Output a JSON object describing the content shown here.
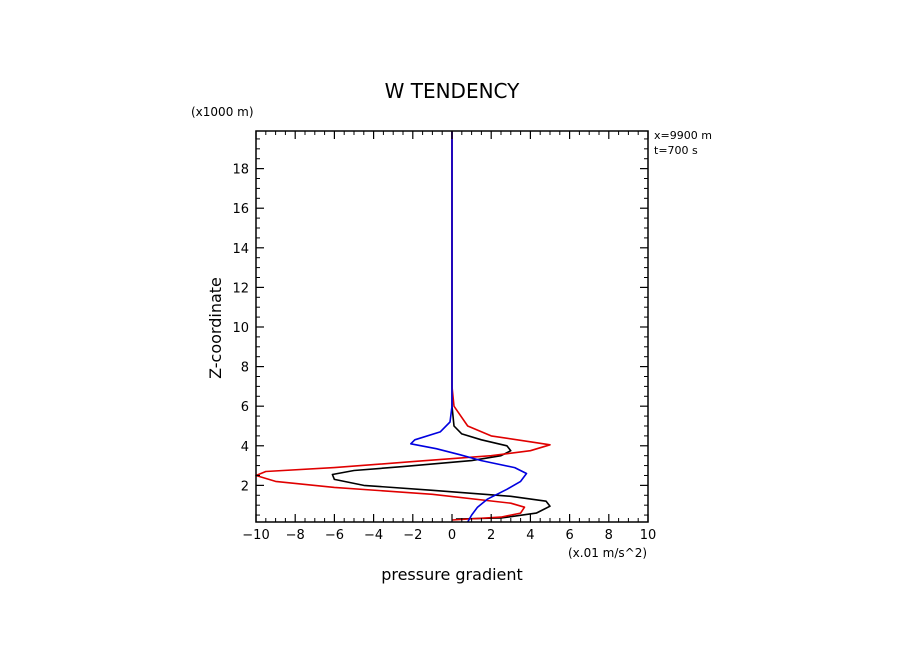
{
  "chart_data": {
    "type": "line",
    "title": "W TENDENCY",
    "xlabel": "pressure gradient",
    "ylabel": "Z-coordinate",
    "x_unit": "(x.01 m/s^2)",
    "y_unit": "(x1000 m)",
    "annotations": [
      "x=9900  m",
      "t=700  s"
    ],
    "xlim": [
      -10,
      10
    ],
    "ylim": [
      0.15,
      19.9
    ],
    "x_ticks": [
      -10,
      -8,
      -6,
      -4,
      -2,
      0,
      2,
      4,
      6,
      8,
      10
    ],
    "y_ticks": [
      2,
      4,
      6,
      8,
      10,
      12,
      14,
      16,
      18
    ],
    "grid": false,
    "series": [
      {
        "color": "#000000",
        "points": [
          [
            0.2,
            0.3
          ],
          [
            2.5,
            0.35
          ],
          [
            4.3,
            0.6
          ],
          [
            5.0,
            0.95
          ],
          [
            4.8,
            1.2
          ],
          [
            3.0,
            1.45
          ],
          [
            -1.0,
            1.75
          ],
          [
            -4.5,
            2.0
          ],
          [
            -6.0,
            2.3
          ],
          [
            -6.1,
            2.55
          ],
          [
            -5.0,
            2.75
          ],
          [
            -2.5,
            2.95
          ],
          [
            1.0,
            3.25
          ],
          [
            2.5,
            3.5
          ],
          [
            3.0,
            3.75
          ],
          [
            2.8,
            4.0
          ],
          [
            1.5,
            4.3
          ],
          [
            0.5,
            4.6
          ],
          [
            0.1,
            5.0
          ],
          [
            0.0,
            6.0
          ],
          [
            0.0,
            19.9
          ]
        ]
      },
      {
        "color": "#e00000",
        "points": [
          [
            0.0,
            0.25
          ],
          [
            2.5,
            0.4
          ],
          [
            3.5,
            0.6
          ],
          [
            3.7,
            0.9
          ],
          [
            3.0,
            1.1
          ],
          [
            -1.0,
            1.55
          ],
          [
            -6.0,
            1.9
          ],
          [
            -9.0,
            2.2
          ],
          [
            -10.0,
            2.5
          ],
          [
            -9.5,
            2.7
          ],
          [
            -6.0,
            2.9
          ],
          [
            -2.0,
            3.2
          ],
          [
            2.0,
            3.5
          ],
          [
            4.0,
            3.75
          ],
          [
            5.0,
            4.05
          ],
          [
            4.0,
            4.2
          ],
          [
            2.0,
            4.5
          ],
          [
            0.8,
            5.0
          ],
          [
            0.1,
            6.0
          ],
          [
            0.0,
            7.0
          ],
          [
            0.0,
            19.9
          ]
        ]
      },
      {
        "color": "#0000e0",
        "points": [
          [
            0.8,
            0.15
          ],
          [
            1.0,
            0.5
          ],
          [
            1.3,
            0.9
          ],
          [
            1.8,
            1.3
          ],
          [
            2.8,
            1.8
          ],
          [
            3.5,
            2.2
          ],
          [
            3.8,
            2.6
          ],
          [
            3.2,
            2.9
          ],
          [
            1.5,
            3.25
          ],
          [
            0.4,
            3.55
          ],
          [
            -0.8,
            3.85
          ],
          [
            -2.1,
            4.1
          ],
          [
            -1.9,
            4.3
          ],
          [
            -0.6,
            4.7
          ],
          [
            -0.1,
            5.2
          ],
          [
            0.0,
            6.0
          ],
          [
            0.0,
            19.9
          ]
        ]
      }
    ]
  }
}
